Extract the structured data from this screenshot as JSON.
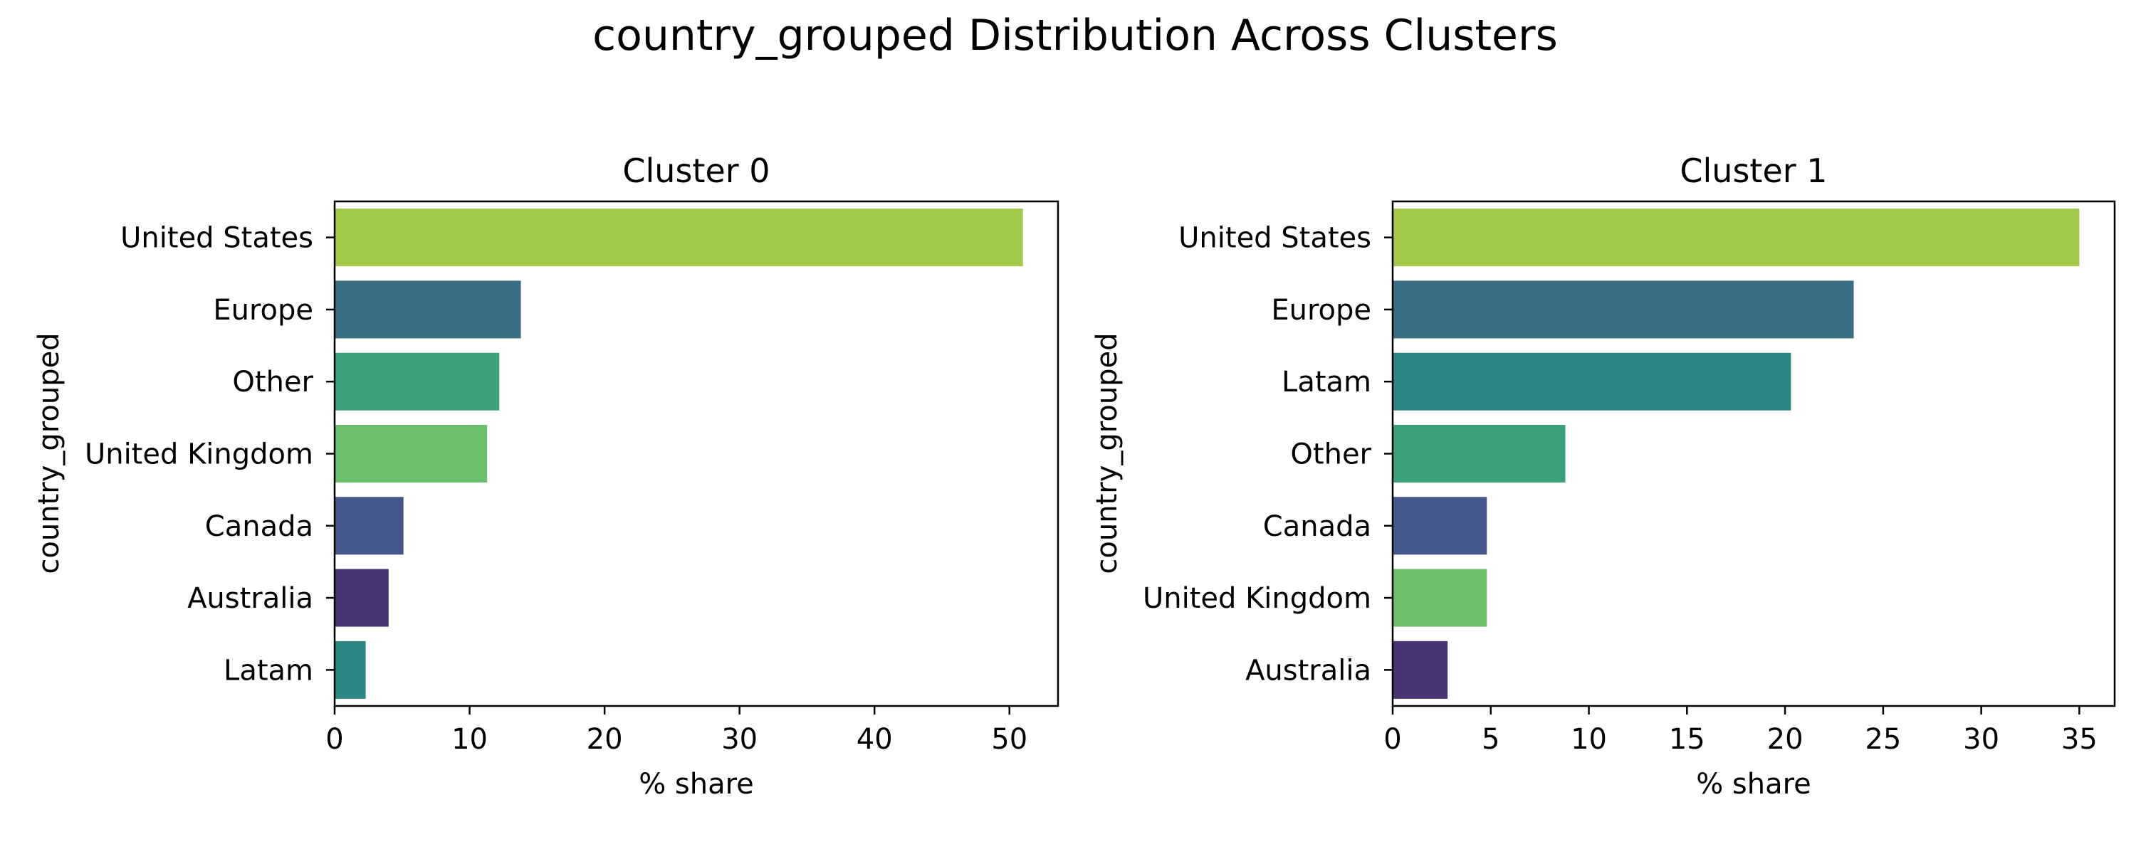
{
  "figure": {
    "suptitle": "country_grouped Distribution Across Clusters"
  },
  "chart_data": [
    {
      "type": "bar",
      "orientation": "horizontal",
      "title": "Cluster 0",
      "xlabel": "% share",
      "ylabel": "country_grouped",
      "categories": [
        "United States",
        "Europe",
        "Other",
        "United Kingdom",
        "Canada",
        "Australia",
        "Latam"
      ],
      "values": [
        51.0,
        13.8,
        12.2,
        11.3,
        5.1,
        4.0,
        2.3
      ],
      "colors": [
        "#a2c948",
        "#3a6e83",
        "#3aa17a",
        "#6bbf6a",
        "#43578a",
        "#4a3373",
        "#2c8784"
      ],
      "xlim": [
        0,
        53.6
      ],
      "xticks": [
        0,
        10,
        20,
        30,
        40,
        50
      ],
      "grid": false,
      "legend": "none"
    },
    {
      "type": "bar",
      "orientation": "horizontal",
      "title": "Cluster 1",
      "xlabel": "% share",
      "ylabel": "country_grouped",
      "categories": [
        "United States",
        "Europe",
        "Latam",
        "Other",
        "Canada",
        "United Kingdom",
        "Australia"
      ],
      "values": [
        35.0,
        23.5,
        20.3,
        8.8,
        4.8,
        4.8,
        2.8
      ],
      "colors": [
        "#a2c948",
        "#3a6e83",
        "#2c8784",
        "#3aa17a",
        "#43578a",
        "#6bbf6a",
        "#4a3373"
      ],
      "xlim": [
        0,
        36.8
      ],
      "xticks": [
        0,
        5,
        10,
        15,
        20,
        25,
        30,
        35
      ],
      "grid": false,
      "legend": "none"
    }
  ]
}
